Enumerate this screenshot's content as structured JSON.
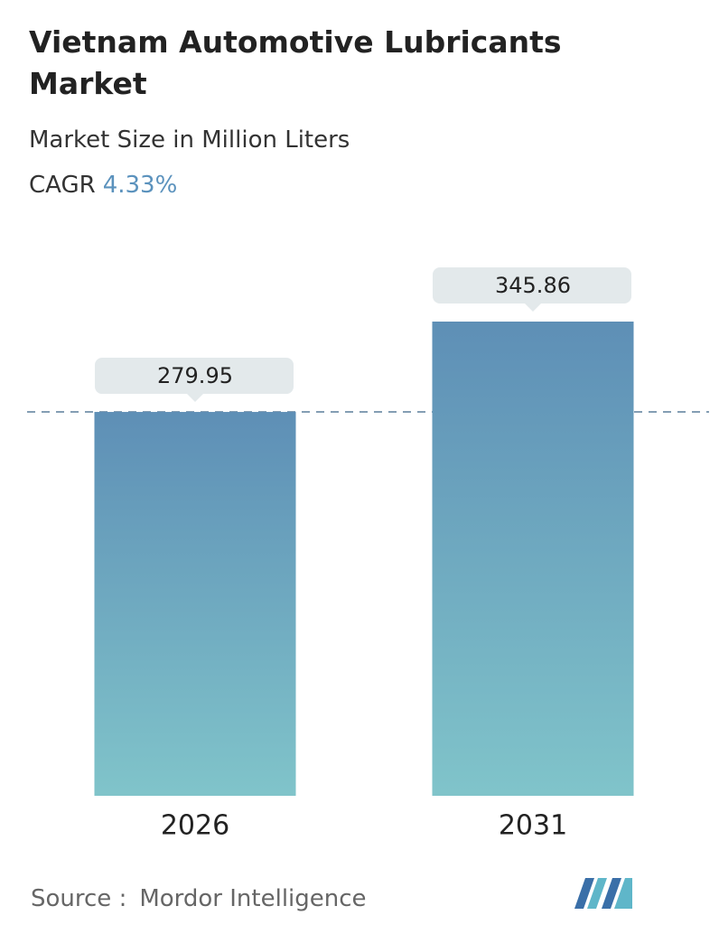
{
  "chart_data": {
    "type": "bar",
    "title": "Vietnam Automotive Lubricants Market",
    "subtitle": "Market Size in Million Liters",
    "cagr_label": "CAGR",
    "cagr": "4.33%",
    "categories": [
      "2026",
      "2031"
    ],
    "values": [
      279.95,
      345.86
    ],
    "color_top": "#5e8fb6",
    "color_bottom": "#80c4ca",
    "source_label": "Source :",
    "source": "Mordor Intelligence"
  }
}
